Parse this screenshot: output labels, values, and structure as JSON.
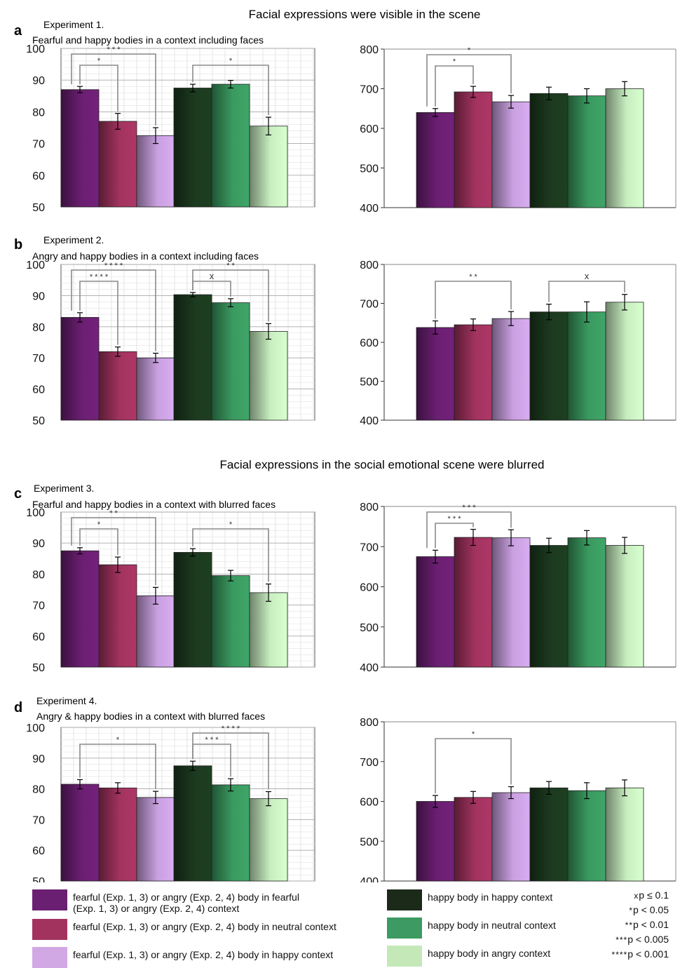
{
  "headings": {
    "visible": "Facial expressions were visible in the scene",
    "blurred": "Facial expressions in the social emotional scene were blurred"
  },
  "colors": {
    "c1": "#6b1f72",
    "c2": "#a2335f",
    "c3": "#c9a0e0",
    "c4": "#1c3a1f",
    "c5": "#3a9a60",
    "c6": "#c8eec0"
  },
  "chart_data": [
    {
      "type": "bar",
      "panel": "a",
      "title": "Experiment 1.",
      "subtitle": "Fearful and happy bodies in a context including faces",
      "ylim": [
        50,
        100
      ],
      "yticks": [
        50,
        60,
        70,
        80,
        90,
        100
      ],
      "values": [
        87,
        77,
        72.5,
        87.5,
        88.7,
        75.5
      ],
      "errors": [
        1,
        2.5,
        2.5,
        1.2,
        1.2,
        2.8
      ],
      "brackets": [
        {
          "from": 0,
          "to": 1,
          "label": "*"
        },
        {
          "from": 0,
          "to": 2,
          "label": "* * *"
        },
        {
          "from": 3,
          "to": 5,
          "label": "*"
        }
      ]
    },
    {
      "type": "bar",
      "panel": "a-rt",
      "ylim": [
        400,
        800
      ],
      "yticks": [
        400,
        500,
        600,
        700,
        800
      ],
      "values": [
        640,
        692,
        667,
        688,
        682,
        700
      ],
      "errors": [
        10,
        14,
        16,
        16,
        18,
        18
      ],
      "brackets": [
        {
          "from": 0,
          "to": 1,
          "label": "*"
        },
        {
          "from": 0,
          "to": 2,
          "label": "*"
        }
      ]
    },
    {
      "type": "bar",
      "panel": "b",
      "title": "Experiment 2.",
      "subtitle": "Angry and happy bodies in a context including faces",
      "ylim": [
        50,
        100
      ],
      "yticks": [
        50,
        60,
        70,
        80,
        90,
        100
      ],
      "values": [
        83,
        72,
        70,
        90.3,
        87.7,
        78.5
      ],
      "errors": [
        1.5,
        1.5,
        1.5,
        0.7,
        1.3,
        2.5
      ],
      "brackets": [
        {
          "from": 0,
          "to": 1,
          "label": "* * * *"
        },
        {
          "from": 0,
          "to": 2,
          "label": "* * * *"
        },
        {
          "from": 3,
          "to": 4,
          "label": "x"
        },
        {
          "from": 3,
          "to": 5,
          "label": "* *"
        }
      ]
    },
    {
      "type": "bar",
      "panel": "b-rt",
      "ylim": [
        400,
        800
      ],
      "yticks": [
        400,
        500,
        600,
        700,
        800
      ],
      "values": [
        638,
        645,
        661,
        678,
        678,
        703
      ],
      "errors": [
        17,
        15,
        18,
        20,
        26,
        20
      ],
      "brackets": [
        {
          "from": 0,
          "to": 2,
          "label": "* *"
        },
        {
          "from": 3,
          "to": 5,
          "label": "x"
        }
      ]
    },
    {
      "type": "bar",
      "panel": "c",
      "title": "Experiment 3.",
      "subtitle": "Fearful and happy bodies in a context with blurred faces",
      "ylim": [
        50,
        100
      ],
      "yticks": [
        50,
        60,
        70,
        80,
        90,
        100
      ],
      "values": [
        87.5,
        83,
        73,
        87,
        79.5,
        74
      ],
      "errors": [
        1,
        2.5,
        2.7,
        1.2,
        1.7,
        2.8
      ],
      "brackets": [
        {
          "from": 0,
          "to": 1,
          "label": "*"
        },
        {
          "from": 0,
          "to": 2,
          "label": "* *"
        },
        {
          "from": 3,
          "to": 5,
          "label": "*"
        }
      ]
    },
    {
      "type": "bar",
      "panel": "c-rt",
      "ylim": [
        400,
        800
      ],
      "yticks": [
        400,
        500,
        600,
        700,
        800
      ],
      "values": [
        675,
        723,
        722,
        703,
        722,
        703
      ],
      "errors": [
        16,
        20,
        20,
        18,
        18,
        20
      ],
      "brackets": [
        {
          "from": 0,
          "to": 1,
          "label": "* * *"
        },
        {
          "from": 0,
          "to": 2,
          "label": "* * *"
        }
      ]
    },
    {
      "type": "bar",
      "panel": "d",
      "title": "Experiment 4.",
      "subtitle": "Angry & happy bodies in a context with blurred faces",
      "ylim": [
        50,
        100
      ],
      "yticks": [
        50,
        60,
        70,
        80,
        90,
        100
      ],
      "values": [
        81.5,
        80.3,
        77.2,
        87.5,
        81.3,
        76.8
      ],
      "errors": [
        1.5,
        1.7,
        2,
        1.5,
        2,
        2.3
      ],
      "brackets": [
        {
          "from": 0,
          "to": 2,
          "label": "*"
        },
        {
          "from": 3,
          "to": 4,
          "label": "* * *"
        },
        {
          "from": 3,
          "to": 5,
          "label": "* * * *"
        }
      ]
    },
    {
      "type": "bar",
      "panel": "d-rt",
      "ylim": [
        400,
        800
      ],
      "yticks": [
        400,
        500,
        600,
        700,
        800
      ],
      "values": [
        600,
        610,
        622,
        634,
        627,
        634
      ],
      "errors": [
        15,
        15,
        15,
        16,
        20,
        20
      ],
      "brackets": [
        {
          "from": 0,
          "to": 2,
          "label": "*"
        }
      ]
    }
  ],
  "legend": [
    {
      "label": "fearful (Exp. 1, 3) or angry (Exp. 2, 4) body in fearful",
      "label2": "(Exp. 1, 3) or angry (Exp. 2, 4) context"
    },
    {
      "label": "fearful (Exp. 1, 3) or angry (Exp. 2, 4) body in neutral context",
      "label2": ""
    },
    {
      "label": "fearful (Exp. 1, 3) or angry (Exp. 2, 4) body in happy context",
      "label2": ""
    },
    {
      "label": "happy body in happy context",
      "label2": ""
    },
    {
      "label": "happy body in neutral context",
      "label2": ""
    },
    {
      "label": "happy body in angry context",
      "label2": ""
    }
  ],
  "significance": [
    {
      "sym": "x",
      "text": "p ≤ 0.1"
    },
    {
      "sym": "*",
      "text": "p < 0.05"
    },
    {
      "sym": "**",
      "text": "p < 0.01"
    },
    {
      "sym": "***",
      "text": "p < 0.005"
    },
    {
      "sym": "****",
      "text": "p < 0.001"
    }
  ]
}
